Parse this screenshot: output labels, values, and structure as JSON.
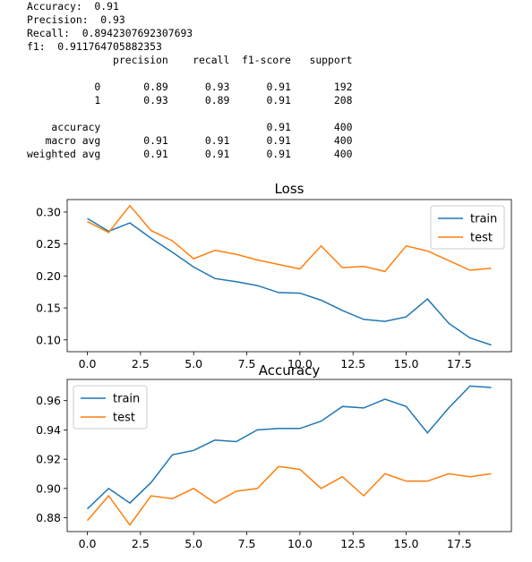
{
  "report": {
    "lines": [
      "Accuracy:  0.91",
      "Precision:  0.93",
      "Recall:  0.8942307692307693",
      "f1:  0.911764705882353",
      "              precision    recall  f1-score   support",
      "",
      "           0       0.89      0.93      0.91       192",
      "           1       0.93      0.89      0.91       208",
      "",
      "    accuracy                           0.91       400",
      "   macro avg       0.91      0.91      0.91       400",
      "weighted avg       0.91      0.91      0.91       400"
    ]
  },
  "chart_data": [
    {
      "type": "line",
      "title": "Loss",
      "x": [
        0,
        1,
        2,
        3,
        4,
        5,
        6,
        7,
        8,
        9,
        10,
        11,
        12,
        13,
        14,
        15,
        16,
        17,
        18,
        19
      ],
      "xticks": [
        0.0,
        2.5,
        5.0,
        7.5,
        10.0,
        12.5,
        15.0,
        17.5
      ],
      "xlim": [
        -0.95,
        19.95
      ],
      "yticks": [
        0.1,
        0.15,
        0.2,
        0.25,
        0.3
      ],
      "ylim": [
        0.0815,
        0.3195
      ],
      "grid": false,
      "legend": "top-right",
      "series": [
        {
          "name": "train",
          "color": "#1f77b4",
          "values": [
            0.29,
            0.27,
            0.283,
            0.259,
            0.237,
            0.214,
            0.196,
            0.191,
            0.185,
            0.174,
            0.173,
            0.162,
            0.146,
            0.132,
            0.129,
            0.136,
            0.164,
            0.126,
            0.103,
            0.092
          ]
        },
        {
          "name": "test",
          "color": "#ff7f0e",
          "values": [
            0.285,
            0.268,
            0.31,
            0.271,
            0.255,
            0.227,
            0.24,
            0.234,
            0.225,
            0.218,
            0.211,
            0.247,
            0.213,
            0.215,
            0.207,
            0.247,
            0.239,
            0.224,
            0.209,
            0.212
          ]
        }
      ]
    },
    {
      "type": "line",
      "title": "Accuracy",
      "x": [
        0,
        1,
        2,
        3,
        4,
        5,
        6,
        7,
        8,
        9,
        10,
        11,
        12,
        13,
        14,
        15,
        16,
        17,
        18,
        19
      ],
      "xticks": [
        0.0,
        2.5,
        5.0,
        7.5,
        10.0,
        12.5,
        15.0,
        17.5
      ],
      "xlim": [
        -0.95,
        19.95
      ],
      "yticks": [
        0.88,
        0.9,
        0.92,
        0.94,
        0.96
      ],
      "ylim": [
        0.8705,
        0.9745
      ],
      "grid": false,
      "legend": "top-left",
      "series": [
        {
          "name": "train",
          "color": "#1f77b4",
          "values": [
            0.886,
            0.9,
            0.89,
            0.904,
            0.923,
            0.926,
            0.933,
            0.932,
            0.94,
            0.941,
            0.941,
            0.946,
            0.956,
            0.955,
            0.961,
            0.956,
            0.938,
            0.955,
            0.97,
            0.969
          ]
        },
        {
          "name": "test",
          "color": "#ff7f0e",
          "values": [
            0.878,
            0.895,
            0.875,
            0.895,
            0.893,
            0.9,
            0.89,
            0.898,
            0.9,
            0.915,
            0.913,
            0.9,
            0.908,
            0.895,
            0.91,
            0.905,
            0.905,
            0.91,
            0.908,
            0.91
          ]
        }
      ]
    }
  ]
}
